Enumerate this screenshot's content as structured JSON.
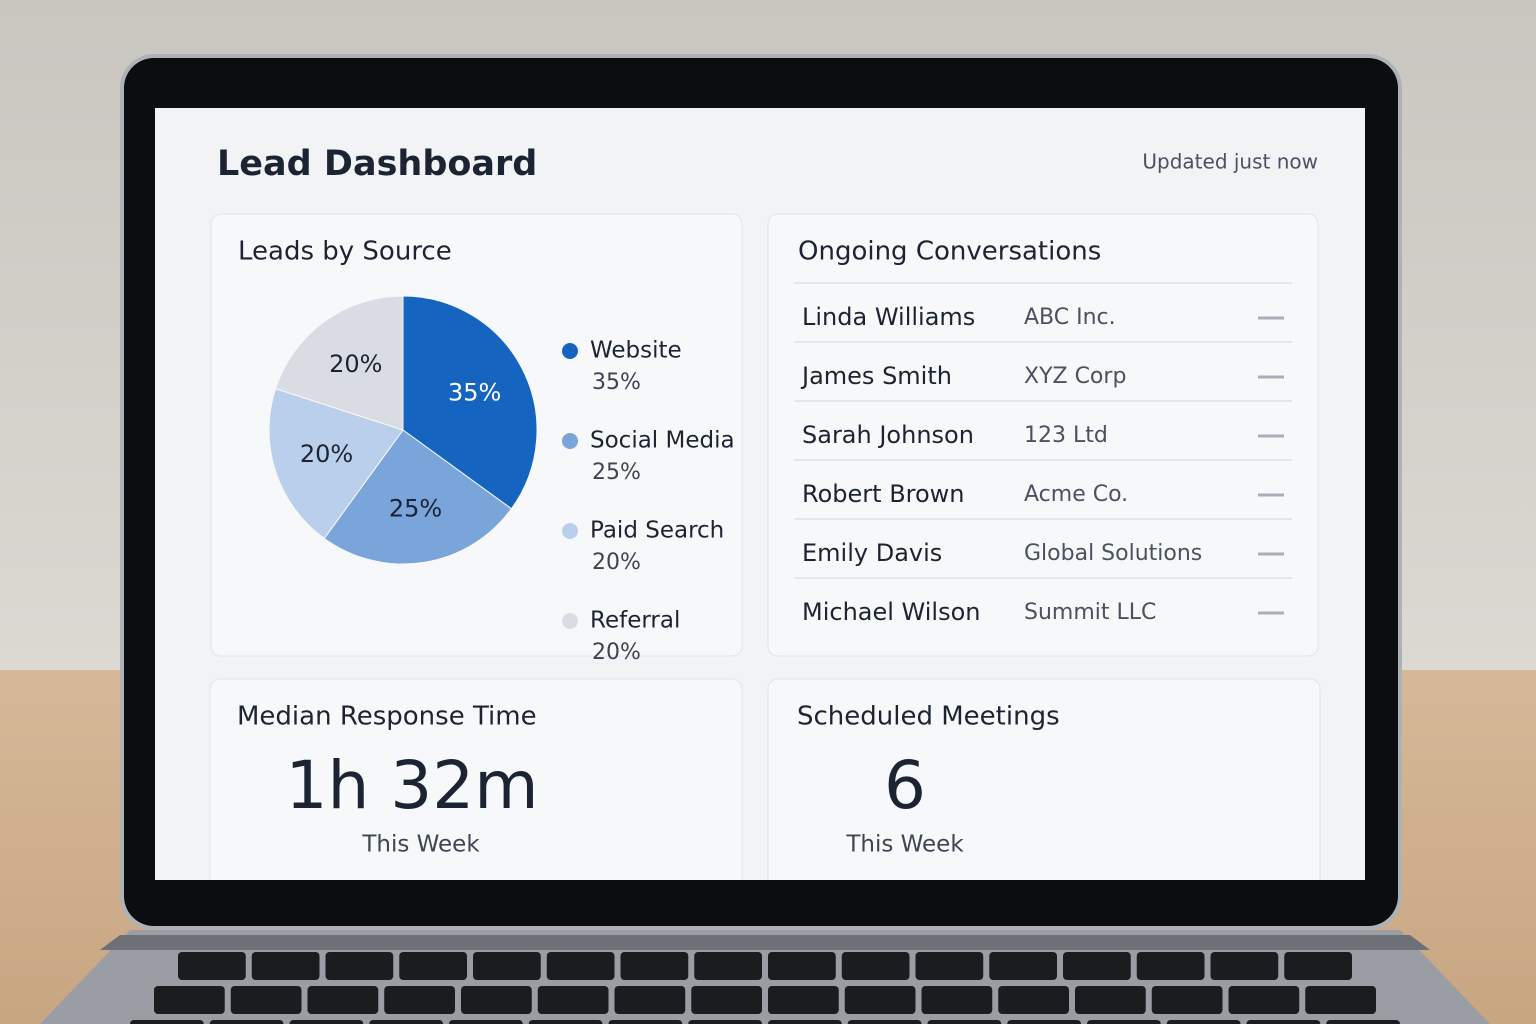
{
  "header": {
    "title": "Lead Dashboard",
    "status": "Updated just now"
  },
  "chart_data": {
    "type": "pie",
    "title": "Leads by Source",
    "categories": [
      "Website",
      "Social Media",
      "Paid Search",
      "Referral"
    ],
    "values": [
      35,
      25,
      20,
      20
    ],
    "value_labels": [
      "35%",
      "25%",
      "20%",
      "20%"
    ],
    "colors": [
      "#1565c0",
      "#79a5db",
      "#b9cfec",
      "#d9dde3"
    ]
  },
  "conversations": {
    "title": "Ongoing Conversations",
    "rows": [
      [
        "Linda Williams",
        "ABC Inc."
      ],
      [
        "James Smith",
        "XYZ Corp"
      ],
      [
        "Sarah Johnson",
        "123 Ltd"
      ],
      [
        "Robert Brown",
        "Acme Co."
      ],
      [
        "Emily Davis",
        "Global Solutions"
      ],
      [
        "Michael Wilson",
        "Summit LLC"
      ]
    ]
  },
  "response_time": {
    "title": "Median Response Time",
    "value": "1h 32m",
    "caption": "This Week"
  },
  "meetings": {
    "title": "Scheduled Meetings",
    "value": 6,
    "caption": "This Week"
  }
}
